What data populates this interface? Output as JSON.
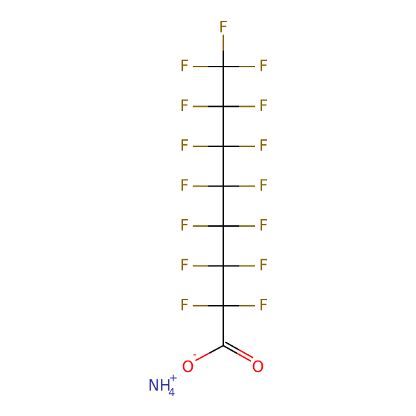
{
  "colors": {
    "bond": "#000000",
    "fluorine": "#8B6400",
    "oxygen": "#FF0000",
    "nitrogen": "#3333AA"
  },
  "molecule": {
    "carbon_count": 8,
    "fluorine_label": "F",
    "oxygen_label": "O",
    "carboxylate_charge": "-",
    "cation": {
      "symbol": "NH",
      "subscript": "4",
      "charge": "+"
    }
  }
}
